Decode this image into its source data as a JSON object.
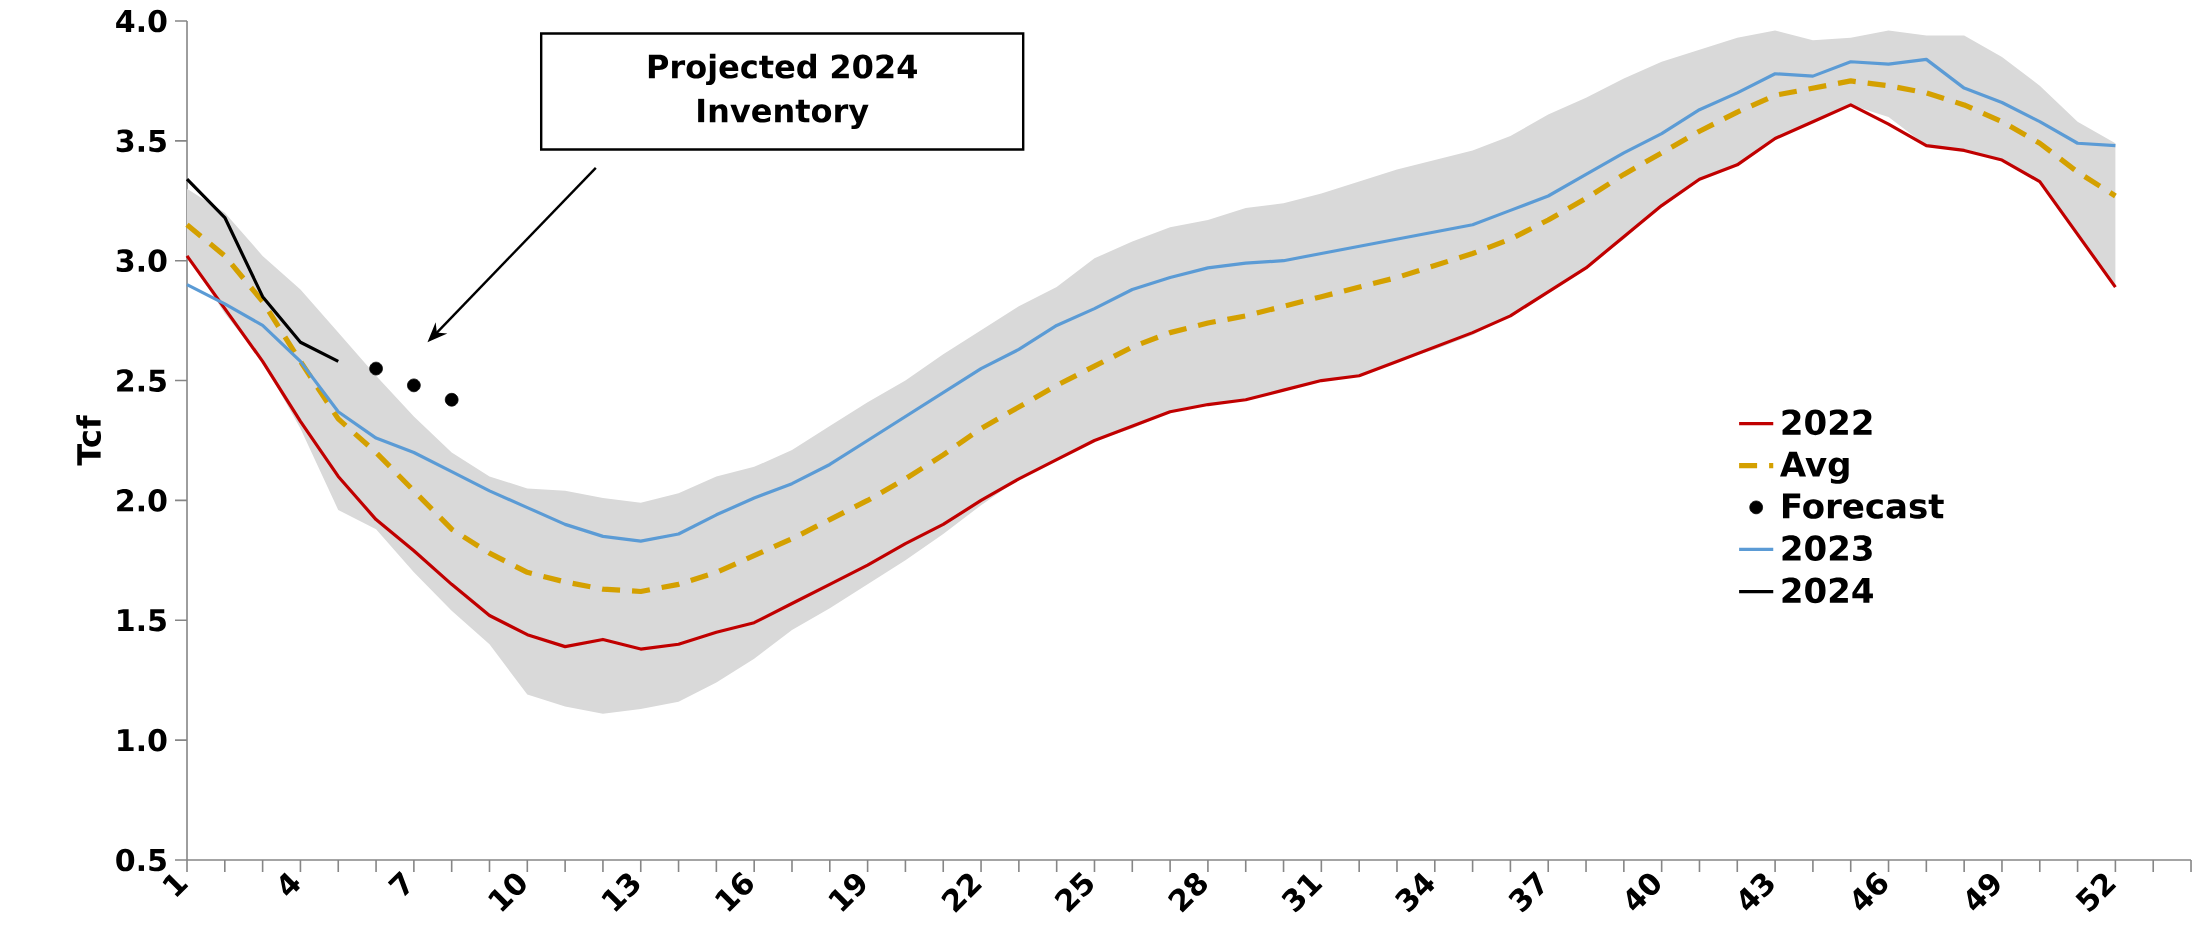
{
  "chart_data": {
    "type": "line",
    "ylabel": "Tcf",
    "x": [
      1,
      2,
      3,
      4,
      5,
      6,
      7,
      8,
      9,
      10,
      11,
      12,
      13,
      14,
      15,
      16,
      17,
      18,
      19,
      20,
      21,
      22,
      23,
      24,
      25,
      26,
      27,
      28,
      29,
      30,
      31,
      32,
      33,
      34,
      35,
      36,
      37,
      38,
      39,
      40,
      41,
      42,
      43,
      44,
      45,
      46,
      47,
      48,
      49,
      50,
      51,
      52
    ],
    "xlim": [
      1,
      54
    ],
    "xticks": [
      1,
      {
        "value": 2,
        "label": null
      },
      {
        "value": 3,
        "label": null
      },
      4,
      {
        "value": 5,
        "label": null
      },
      {
        "value": 6,
        "label": null
      },
      7,
      {
        "value": 8,
        "label": null
      },
      {
        "value": 9,
        "label": null
      },
      10,
      {
        "value": 11,
        "label": null
      },
      {
        "value": 12,
        "label": null
      },
      13,
      {
        "value": 14,
        "label": null
      },
      {
        "value": 15,
        "label": null
      },
      16,
      {
        "value": 17,
        "label": null
      },
      {
        "value": 18,
        "label": null
      },
      19,
      {
        "value": 20,
        "label": null
      },
      {
        "value": 21,
        "label": null
      },
      22,
      {
        "value": 23,
        "label": null
      },
      {
        "value": 24,
        "label": null
      },
      25,
      {
        "value": 26,
        "label": null
      },
      {
        "value": 27,
        "label": null
      },
      28,
      {
        "value": 29,
        "label": null
      },
      {
        "value": 30,
        "label": null
      },
      31,
      {
        "value": 32,
        "label": null
      },
      {
        "value": 33,
        "label": null
      },
      34,
      {
        "value": 35,
        "label": null
      },
      {
        "value": 36,
        "label": null
      },
      37,
      {
        "value": 38,
        "label": null
      },
      {
        "value": 39,
        "label": null
      },
      40,
      {
        "value": 41,
        "label": null
      },
      {
        "value": 42,
        "label": null
      },
      43,
      {
        "value": 44,
        "label": null
      },
      {
        "value": 45,
        "label": null
      },
      46,
      {
        "value": 47,
        "label": null
      },
      {
        "value": 48,
        "label": null
      },
      49,
      {
        "value": 50,
        "label": null
      },
      {
        "value": 51,
        "label": null
      },
      52,
      {
        "value": 53,
        "label": null
      },
      {
        "value": 54,
        "label": null
      }
    ],
    "ylim": [
      0.5,
      4.0
    ],
    "yticks": [
      0.5,
      {
        "value": 1.0,
        "label": "1.0"
      },
      1.5,
      {
        "value": 2.0,
        "label": "2.0"
      },
      2.5,
      {
        "value": 3.0,
        "label": "3.0"
      },
      3.5,
      {
        "value": 4.0,
        "label": "4.0"
      }
    ],
    "grid": false,
    "legend": "right",
    "annotations": [
      "Projected 2024 Inventory"
    ],
    "series": [
      {
        "name": "2022",
        "color": "#c00000",
        "line_style": "solid",
        "values": [
          3.02,
          2.8,
          2.58,
          2.33,
          2.1,
          1.92,
          1.79,
          1.65,
          1.52,
          1.44,
          1.39,
          1.42,
          1.38,
          1.4,
          1.45,
          1.49,
          1.57,
          1.65,
          1.73,
          1.82,
          1.9,
          2.0,
          2.09,
          2.17,
          2.25,
          2.31,
          2.37,
          2.4,
          2.42,
          2.46,
          2.5,
          2.52,
          2.58,
          2.64,
          2.7,
          2.77,
          2.87,
          2.97,
          3.1,
          3.23,
          3.34,
          3.4,
          3.51,
          3.58,
          3.65,
          3.57,
          3.48,
          3.46,
          3.42,
          3.33,
          3.11,
          2.89
        ]
      },
      {
        "name": "Avg",
        "color": "#d4a000",
        "line_style": "dashed",
        "values": [
          3.15,
          3.02,
          2.83,
          2.58,
          2.34,
          2.2,
          2.04,
          1.88,
          1.78,
          1.7,
          1.66,
          1.63,
          1.62,
          1.65,
          1.7,
          1.77,
          1.84,
          1.92,
          2.0,
          2.09,
          2.19,
          2.3,
          2.39,
          2.48,
          2.56,
          2.64,
          2.7,
          2.74,
          2.77,
          2.81,
          2.85,
          2.89,
          2.93,
          2.98,
          3.03,
          3.09,
          3.17,
          3.26,
          3.36,
          3.45,
          3.54,
          3.62,
          3.69,
          3.72,
          3.75,
          3.73,
          3.7,
          3.65,
          3.58,
          3.49,
          3.37,
          3.27
        ],
        "upper": [
          3.3,
          3.2,
          3.02,
          2.88,
          2.7,
          2.52,
          2.35,
          2.2,
          2.1,
          2.05,
          2.04,
          2.01,
          1.99,
          2.03,
          2.1,
          2.14,
          2.21,
          2.31,
          2.41,
          2.5,
          2.61,
          2.71,
          2.81,
          2.89,
          3.01,
          3.08,
          3.14,
          3.17,
          3.22,
          3.24,
          3.28,
          3.33,
          3.38,
          3.42,
          3.46,
          3.52,
          3.61,
          3.68,
          3.76,
          3.83,
          3.88,
          3.93,
          3.96,
          3.92,
          3.93,
          3.96,
          3.94,
          3.94,
          3.85,
          3.73,
          3.58,
          3.49
        ],
        "lower": [
          3.02,
          2.78,
          2.58,
          2.3,
          1.96,
          1.88,
          1.7,
          1.54,
          1.4,
          1.19,
          1.14,
          1.11,
          1.13,
          1.16,
          1.24,
          1.34,
          1.46,
          1.55,
          1.65,
          1.75,
          1.86,
          1.98,
          2.09,
          2.17,
          2.25,
          2.3,
          2.37,
          2.4,
          2.42,
          2.46,
          2.5,
          2.52,
          2.58,
          2.63,
          2.69,
          2.77,
          2.87,
          2.97,
          3.09,
          3.23,
          3.34,
          3.4,
          3.51,
          3.58,
          3.65,
          3.6,
          3.48,
          3.46,
          3.42,
          3.33,
          3.12,
          2.89
        ]
      },
      {
        "name": "Forecast",
        "type": "scatter",
        "color": "#000000",
        "marker": "circle",
        "values": [
          null,
          null,
          null,
          null,
          null,
          2.55,
          2.48,
          2.42,
          null,
          null,
          null,
          null,
          null,
          null,
          null,
          null,
          null,
          null,
          null,
          null,
          null,
          null,
          null,
          null,
          null,
          null,
          null,
          null,
          null,
          null,
          null,
          null,
          null,
          null,
          null,
          null,
          null,
          null,
          null,
          null,
          null,
          null,
          null,
          null,
          null,
          null,
          null,
          null,
          null,
          null,
          null,
          null
        ]
      },
      {
        "name": "2023",
        "color": "#5b9bd5",
        "line_style": "solid",
        "values": [
          2.9,
          2.82,
          2.73,
          2.58,
          2.37,
          2.26,
          2.2,
          2.12,
          2.04,
          1.97,
          1.9,
          1.85,
          1.83,
          1.86,
          1.94,
          2.01,
          2.07,
          2.15,
          2.25,
          2.35,
          2.45,
          2.55,
          2.63,
          2.73,
          2.8,
          2.88,
          2.93,
          2.97,
          2.99,
          3.0,
          3.03,
          3.06,
          3.09,
          3.12,
          3.15,
          3.21,
          3.27,
          3.36,
          3.45,
          3.53,
          3.63,
          3.7,
          3.78,
          3.77,
          3.83,
          3.82,
          3.84,
          3.72,
          3.66,
          3.58,
          3.49,
          3.48
        ]
      },
      {
        "name": "2024",
        "color": "#000000",
        "line_style": "solid",
        "values": [
          3.34,
          3.18,
          2.85,
          2.66,
          2.58,
          null,
          null,
          null,
          null,
          null,
          null,
          null,
          null,
          null,
          null,
          null,
          null,
          null,
          null,
          null,
          null,
          null,
          null,
          null,
          null,
          null,
          null,
          null,
          null,
          null,
          null,
          null,
          null,
          null,
          null,
          null,
          null,
          null,
          null,
          null,
          null,
          null,
          null,
          null,
          null,
          null,
          null,
          null,
          null,
          null,
          null,
          null
        ]
      }
    ]
  }
}
